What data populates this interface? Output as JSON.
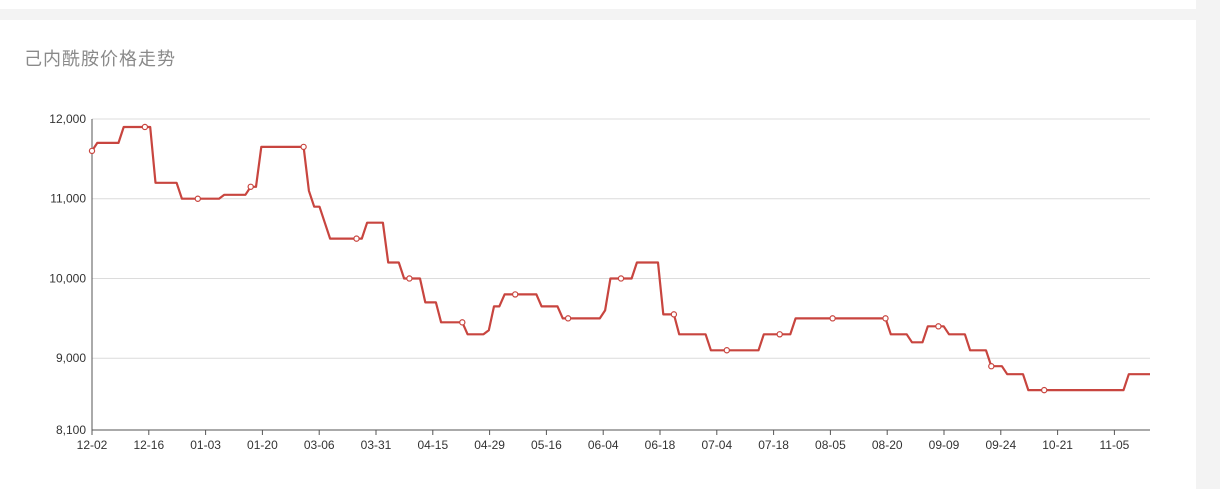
{
  "title": "己内酰胺价格走势",
  "colors": {
    "line": "#c8453f",
    "grid": "#dcdcdc",
    "axis": "#555555",
    "background": "#ffffff"
  },
  "chart_data": {
    "type": "line",
    "title": "己内酰胺价格走势",
    "xlabel": "",
    "ylabel": "",
    "ylim": [
      8100,
      12000
    ],
    "y_ticks": [
      {
        "value": 12000,
        "label": "12,000"
      },
      {
        "value": 11000,
        "label": "11,000"
      },
      {
        "value": 10000,
        "label": "10,000"
      },
      {
        "value": 9000,
        "label": "9,000"
      },
      {
        "value": 8100,
        "label": "8,100"
      }
    ],
    "x_tick_labels": [
      "12-02",
      "12-16",
      "01-03",
      "01-20",
      "03-06",
      "03-31",
      "04-15",
      "04-29",
      "05-16",
      "06-04",
      "06-18",
      "07-04",
      "07-18",
      "08-05",
      "08-20",
      "09-09",
      "09-24",
      "10-21",
      "11-05"
    ],
    "grid": "horizontal",
    "series": [
      {
        "values": [
          11600,
          11700,
          11700,
          11700,
          11700,
          11700,
          11900,
          11900,
          11900,
          11900,
          11900,
          11900,
          11200,
          11200,
          11200,
          11200,
          11200,
          11000,
          11000,
          11000,
          11000,
          11000,
          11000,
          11000,
          11000,
          11050,
          11050,
          11050,
          11050,
          11050,
          11150,
          11150,
          11650,
          11650,
          11650,
          11650,
          11650,
          11650,
          11650,
          11650,
          11650,
          11100,
          10900,
          10900,
          10700,
          10500,
          10500,
          10500,
          10500,
          10500,
          10500,
          10500,
          10700,
          10700,
          10700,
          10700,
          10200,
          10200,
          10200,
          10000,
          10000,
          10000,
          10000,
          9700,
          9700,
          9700,
          9450,
          9450,
          9450,
          9450,
          9450,
          9300,
          9300,
          9300,
          9300,
          9350,
          9650,
          9650,
          9800,
          9800,
          9800,
          9800,
          9800,
          9800,
          9800,
          9650,
          9650,
          9650,
          9650,
          9500,
          9500,
          9500,
          9500,
          9500,
          9500,
          9500,
          9500,
          9600,
          10000,
          10000,
          10000,
          10000,
          10000,
          10200,
          10200,
          10200,
          10200,
          10200,
          9550,
          9550,
          9550,
          9300,
          9300,
          9300,
          9300,
          9300,
          9300,
          9100,
          9100,
          9100,
          9100,
          9100,
          9100,
          9100,
          9100,
          9100,
          9100,
          9300,
          9300,
          9300,
          9300,
          9300,
          9300,
          9500,
          9500,
          9500,
          9500,
          9500,
          9500,
          9500,
          9500,
          9500,
          9500,
          9500,
          9500,
          9500,
          9500,
          9500,
          9500,
          9500,
          9500,
          9300,
          9300,
          9300,
          9300,
          9200,
          9200,
          9200,
          9400,
          9400,
          9400,
          9400,
          9300,
          9300,
          9300,
          9300,
          9100,
          9100,
          9100,
          9100,
          8900,
          8900,
          8900,
          8800,
          8800,
          8800,
          8800,
          8600,
          8600,
          8600,
          8600,
          8600,
          8600,
          8600,
          8600,
          8600,
          8600,
          8600,
          8600,
          8600,
          8600,
          8600,
          8600,
          8600,
          8600,
          8600,
          8800,
          8800,
          8800,
          8800,
          8800
        ],
        "markers": [
          0,
          10,
          20,
          30,
          40,
          50,
          60,
          70,
          80,
          90,
          100,
          110,
          120,
          130,
          140,
          150,
          160,
          170,
          180
        ]
      }
    ]
  }
}
